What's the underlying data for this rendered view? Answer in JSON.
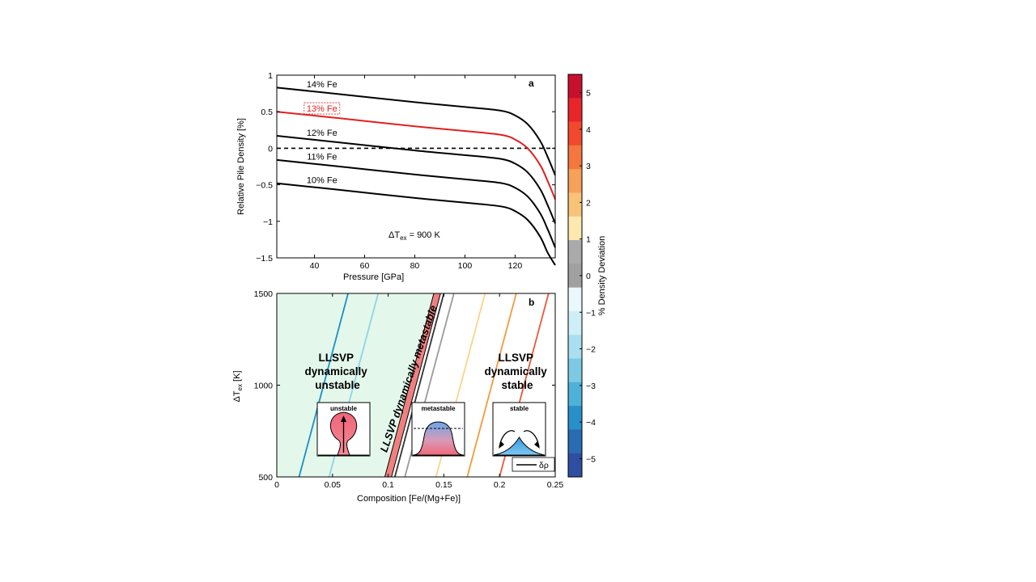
{
  "chart_data": [
    {
      "panel": "a",
      "type": "line",
      "xlabel": "Pressure  [GPa]",
      "ylabel": "Relative Pile Density  [%]",
      "xlim": [
        25,
        136
      ],
      "ylim": [
        -1.5,
        1
      ],
      "xticks": [
        40,
        60,
        80,
        100,
        120
      ],
      "xtick_labels": [
        "40",
        "60",
        "80",
        "100",
        "120"
      ],
      "yticks": [
        1,
        0.5,
        0,
        -0.5,
        -1,
        -1.5
      ],
      "ytick_labels": [
        "1",
        "0.5",
        "0",
        "−0.5",
        "−1",
        "−1.5"
      ],
      "annotation": {
        "main": "ΔT",
        "sub": "ex",
        "rest": " = 900 K"
      },
      "reference_line": {
        "y": 0,
        "style": "dashed"
      },
      "series": [
        {
          "name": "14% Fe",
          "color": "#000000",
          "x": [
            25,
            50,
            80,
            105,
            115,
            120,
            125,
            130,
            133,
            136
          ],
          "y": [
            0.83,
            0.74,
            0.63,
            0.55,
            0.51,
            0.45,
            0.33,
            0.1,
            -0.12,
            -0.37
          ]
        },
        {
          "name": "13% Fe",
          "color": "#e02020",
          "boxed": true,
          "x": [
            25,
            50,
            80,
            105,
            115,
            120,
            125,
            130,
            133,
            136
          ],
          "y": [
            0.5,
            0.41,
            0.3,
            0.22,
            0.18,
            0.12,
            0.0,
            -0.23,
            -0.45,
            -0.7
          ]
        },
        {
          "name": "12% Fe",
          "color": "#000000",
          "x": [
            25,
            50,
            80,
            105,
            115,
            120,
            125,
            130,
            133,
            136
          ],
          "y": [
            0.17,
            0.08,
            -0.03,
            -0.11,
            -0.15,
            -0.21,
            -0.33,
            -0.56,
            -0.78,
            -1.03
          ]
        },
        {
          "name": "11% Fe",
          "color": "#000000",
          "x": [
            25,
            50,
            80,
            105,
            115,
            120,
            125,
            130,
            133,
            136
          ],
          "y": [
            -0.16,
            -0.25,
            -0.36,
            -0.44,
            -0.48,
            -0.54,
            -0.66,
            -0.89,
            -1.11,
            -1.36
          ]
        },
        {
          "name": "10% Fe",
          "color": "#000000",
          "x": [
            25,
            50,
            80,
            105,
            115,
            120,
            125,
            130,
            133,
            136
          ],
          "y": [
            -0.48,
            -0.57,
            -0.68,
            -0.76,
            -0.8,
            -0.86,
            -0.98,
            -1.21,
            -1.43,
            -1.6
          ]
        }
      ]
    },
    {
      "panel": "b",
      "type": "line",
      "xlabel": "Composition   [Fe/(Mg+Fe)]",
      "ylabel_main": "ΔT",
      "ylabel_sub": "ex",
      "ylabel_unit": "  [K]",
      "xlim": [
        0,
        0.25
      ],
      "ylim": [
        500,
        1500
      ],
      "xticks": [
        0,
        0.05,
        0.1,
        0.15,
        0.2,
        0.25
      ],
      "xtick_labels": [
        "0",
        "0.05",
        "0.1",
        "0.15",
        "0.2",
        "0.25"
      ],
      "yticks": [
        500,
        1000,
        1500
      ],
      "ytick_labels": [
        "500",
        "1000",
        "1500"
      ],
      "regions": {
        "unstable": {
          "lines": [
            "LLSVP",
            "dynamically",
            "unstable"
          ],
          "color": "#e3f8ea"
        },
        "metastable": {
          "label": "LLSVP dynamically metastable",
          "band_color": "#f08080"
        },
        "stable": {
          "lines": [
            "LLSVP",
            "dynamically",
            "stable"
          ]
        }
      },
      "insets": {
        "unstable": "unstable",
        "metastable": "metastable",
        "stable": "stable"
      },
      "legend_label": "δρ",
      "contours": [
        {
          "x": [
            0.02,
            0.064
          ],
          "y": [
            500,
            1500
          ],
          "color": "#1a8fc8"
        },
        {
          "x": [
            0.047,
            0.091
          ],
          "y": [
            500,
            1500
          ],
          "color": "#8fd3e8"
        },
        {
          "x": [
            0.106,
            0.15
          ],
          "y": [
            500,
            1500
          ],
          "color": "#333333"
        },
        {
          "x": [
            0.115,
            0.159
          ],
          "y": [
            500,
            1500
          ],
          "color": "#9a9a9a"
        },
        {
          "x": [
            0.143,
            0.187
          ],
          "y": [
            500,
            1500
          ],
          "color": "#fbd38a"
        },
        {
          "x": [
            0.171,
            0.215
          ],
          "y": [
            500,
            1500
          ],
          "color": "#f39a3c"
        },
        {
          "x": [
            0.2,
            0.244
          ],
          "y": [
            500,
            1500
          ],
          "color": "#e85a3a"
        }
      ],
      "metastable_band": {
        "x_bottom": [
          0.097,
          0.103
        ],
        "x_top": [
          0.141,
          0.147
        ]
      }
    },
    {
      "type": "colorbar",
      "label": "% Density Deviation",
      "range": [
        -5.5,
        5.5
      ],
      "ticks": [
        5,
        4,
        3,
        2,
        1,
        0,
        -1,
        -2,
        -3,
        -4,
        -5
      ],
      "tick_labels": [
        "5",
        "4",
        "3",
        "2",
        "1",
        "0",
        "−1",
        "−2",
        "−3",
        "−4",
        "−5"
      ],
      "bins_top_to_bottom": [
        "#c8102e",
        "#e8262a",
        "#f2492e",
        "#f4773f",
        "#f6a05a",
        "#f8c278",
        "#fde8b0",
        "#aaaaaa",
        "#a0a0a0",
        "#eaf7fb",
        "#cfeef5",
        "#a9dfee",
        "#7cc9e4",
        "#4eb1d8",
        "#2890c8",
        "#2a6cb4",
        "#2e4ea1"
      ]
    }
  ]
}
